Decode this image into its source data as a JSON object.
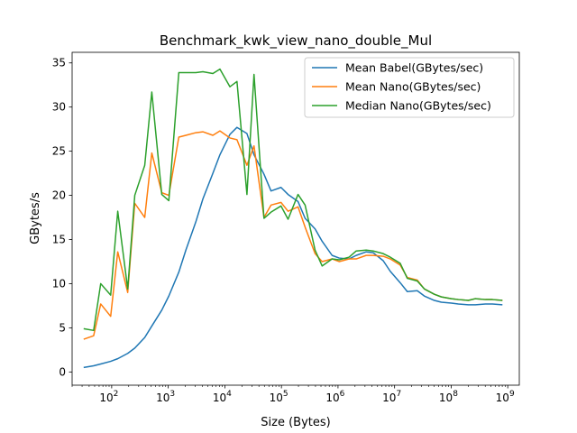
{
  "chart_data": {
    "type": "line",
    "title": "Benchmark_kwk_view_nano_double_Mul",
    "xlabel": "Size (Bytes)",
    "ylabel": "GBytes/s",
    "xscale": "log",
    "xlim": [
      20,
      1600000000.0
    ],
    "ylim": [
      -1.5,
      36.2
    ],
    "grid": false,
    "legend_position": "top-right",
    "x_ticks": [
      {
        "value": 100,
        "base": "10",
        "exp": "2"
      },
      {
        "value": 1000,
        "base": "10",
        "exp": "3"
      },
      {
        "value": 10000,
        "base": "10",
        "exp": "4"
      },
      {
        "value": 100000,
        "base": "10",
        "exp": "5"
      },
      {
        "value": 1000000,
        "base": "10",
        "exp": "6"
      },
      {
        "value": 10000000,
        "base": "10",
        "exp": "7"
      },
      {
        "value": 100000000,
        "base": "10",
        "exp": "8"
      },
      {
        "value": 1000000000,
        "base": "10",
        "exp": "9"
      }
    ],
    "y_ticks": [
      0,
      5,
      10,
      15,
      20,
      25,
      30,
      35
    ],
    "series": [
      {
        "name": "Mean Babel(GBytes/sec)",
        "color": "#1f77b4",
        "x": [
          32,
          48,
          64,
          96,
          128,
          192,
          256,
          384,
          512,
          768,
          1024,
          1536,
          2048,
          3072,
          4096,
          6144,
          8192,
          12288,
          16384,
          24576,
          32768,
          49152,
          65536,
          98304,
          131072,
          196608,
          262144,
          393216,
          524288,
          786432,
          1048576,
          1572864,
          2097152,
          3145728,
          4194304,
          6291456,
          8388608,
          12582912,
          16777216,
          25165824,
          33554432,
          50331648,
          67108864,
          100663296,
          134217728,
          201326592,
          268435456,
          402653184,
          536870912,
          805306368
        ],
        "y": [
          0.5,
          0.7,
          0.9,
          1.2,
          1.5,
          2.1,
          2.7,
          3.9,
          5.2,
          7.0,
          8.6,
          11.3,
          13.8,
          17.0,
          19.6,
          22.5,
          24.6,
          26.9,
          27.7,
          27.0,
          24.6,
          22.4,
          20.5,
          20.9,
          20.1,
          19.3,
          17.4,
          16.2,
          14.8,
          13.2,
          12.9,
          12.8,
          13.2,
          13.6,
          13.5,
          12.6,
          11.4,
          10.1,
          9.1,
          9.2,
          8.6,
          8.1,
          7.9,
          7.8,
          7.7,
          7.6,
          7.6,
          7.7,
          7.7,
          7.6
        ]
      },
      {
        "name": "Mean Nano(GBytes/sec)",
        "color": "#ff7f0e",
        "x": [
          32,
          48,
          64,
          96,
          128,
          192,
          256,
          384,
          512,
          768,
          1024,
          1536,
          2048,
          3072,
          4096,
          6144,
          8192,
          12288,
          16384,
          24576,
          32768,
          49152,
          65536,
          98304,
          131072,
          196608,
          262144,
          393216,
          524288,
          786432,
          1048576,
          1572864,
          2097152,
          3145728,
          4194304,
          6291456,
          8388608,
          12582912,
          16777216,
          25165824,
          33554432,
          50331648,
          67108864,
          100663296,
          134217728,
          201326592,
          268435456,
          402653184,
          536870912,
          805306368
        ],
        "y": [
          3.7,
          4.1,
          7.7,
          6.3,
          13.6,
          9.0,
          19.1,
          17.5,
          24.8,
          20.3,
          20.0,
          26.6,
          26.8,
          27.1,
          27.2,
          26.8,
          27.3,
          26.5,
          26.3,
          23.4,
          25.6,
          17.5,
          18.9,
          19.2,
          18.2,
          18.7,
          16.4,
          13.4,
          12.5,
          12.8,
          12.5,
          12.8,
          12.8,
          13.2,
          13.2,
          13.1,
          12.8,
          12.1,
          10.7,
          10.4,
          9.4,
          8.8,
          8.5,
          8.3,
          8.2,
          8.1,
          8.3,
          8.2,
          8.2,
          8.1
        ]
      },
      {
        "name": "Median Nano(GBytes/sec)",
        "color": "#2ca02c",
        "x": [
          32,
          48,
          64,
          96,
          128,
          192,
          256,
          384,
          512,
          768,
          1024,
          1536,
          2048,
          3072,
          4096,
          6144,
          8192,
          12288,
          16384,
          24576,
          32768,
          49152,
          65536,
          98304,
          131072,
          196608,
          262144,
          393216,
          524288,
          786432,
          1048576,
          1572864,
          2097152,
          3145728,
          4194304,
          6291456,
          8388608,
          12582912,
          16777216,
          25165824,
          33554432,
          50331648,
          67108864,
          100663296,
          134217728,
          201326592,
          268435456,
          402653184,
          536870912,
          805306368
        ],
        "y": [
          4.9,
          4.7,
          10.0,
          8.7,
          18.2,
          9.4,
          20.0,
          23.4,
          31.7,
          20.1,
          19.4,
          33.9,
          33.9,
          33.9,
          34.0,
          33.8,
          34.3,
          32.3,
          32.9,
          20.1,
          33.7,
          17.4,
          18.1,
          18.8,
          17.3,
          20.1,
          18.9,
          13.8,
          12.0,
          12.8,
          12.7,
          13.0,
          13.7,
          13.8,
          13.7,
          13.4,
          13.0,
          12.3,
          10.6,
          10.3,
          9.4,
          8.8,
          8.5,
          8.3,
          8.2,
          8.1,
          8.3,
          8.2,
          8.2,
          8.1
        ]
      }
    ]
  }
}
